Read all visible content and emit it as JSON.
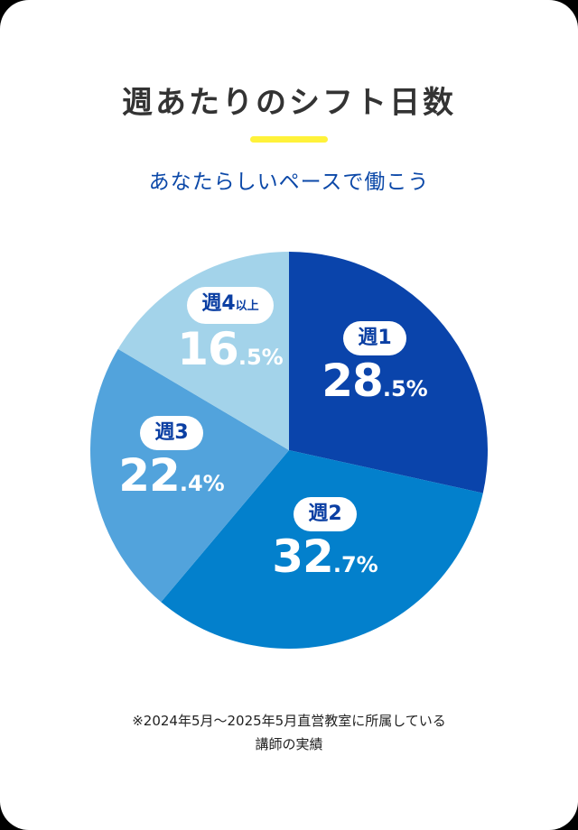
{
  "header": {
    "title": "週あたりのシフト日数",
    "subtitle": "あなたらしいペースで働こう",
    "accent_color": "#fff23a"
  },
  "chart_data": {
    "type": "pie",
    "title": "週あたりのシフト日数",
    "categories": [
      "週1",
      "週2",
      "週3",
      "週4以上"
    ],
    "values": [
      28.5,
      32.7,
      22.4,
      16.5
    ],
    "colors": [
      "#0a44ab",
      "#0380cc",
      "#52a3dc",
      "#a3d3ea"
    ],
    "start_angle": "12 o'clock",
    "direction": "clockwise",
    "unit": "%"
  },
  "slices": [
    {
      "label": "週1",
      "label_main": "週1",
      "label_small": "",
      "pct_int": "28",
      "pct_dec": ".5%"
    },
    {
      "label": "週2",
      "label_main": "週2",
      "label_small": "",
      "pct_int": "32",
      "pct_dec": ".7%"
    },
    {
      "label": "週3",
      "label_main": "週3",
      "label_small": "",
      "pct_int": "22",
      "pct_dec": ".4%"
    },
    {
      "label": "週4以上",
      "label_main": "週4",
      "label_small": "以上",
      "pct_int": "16",
      "pct_dec": ".5%"
    }
  ],
  "footnote": {
    "line1": "※2024年5月～2025年5月直営教室に所属している",
    "line2": "講師の実績"
  }
}
